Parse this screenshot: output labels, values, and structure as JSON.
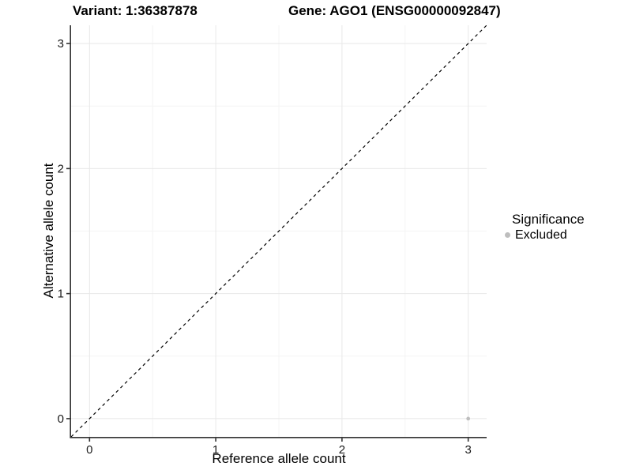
{
  "titles": {
    "left": "Variant: 1:36387878",
    "right": "Gene: AGO1 (ENSG00000092847)"
  },
  "chart_data": {
    "type": "scatter",
    "title": "Variant: 1:36387878   Gene: AGO1 (ENSG00000092847)",
    "xlabel": "Reference allele count",
    "ylabel": "Alternative allele count",
    "xlim": [
      -0.146,
      3.146
    ],
    "ylim": [
      -0.146,
      3.146
    ],
    "xticks": [
      0,
      1,
      2,
      3
    ],
    "yticks": [
      0,
      1,
      2,
      3
    ],
    "grid": "major and minor gridlines, light grey on white panel",
    "points": [
      {
        "x": 3,
        "y": 0,
        "series": "Excluded",
        "color": "#bebebe"
      }
    ],
    "reference_line": {
      "type": "abline",
      "slope": 1,
      "intercept": 0,
      "style": "dashed",
      "color": "#000000"
    },
    "legend": {
      "title": "Significance",
      "position": "right",
      "entries": [
        {
          "label": "Excluded",
          "color": "#bebebe",
          "marker": "circle"
        }
      ]
    }
  },
  "colors": {
    "background": "#ffffff",
    "grid_major": "#e8e8e8",
    "grid_minor": "#f4f4f4",
    "axis_line": "#333333",
    "tick_label": "#1a1a1a",
    "point": "#bebebe"
  }
}
